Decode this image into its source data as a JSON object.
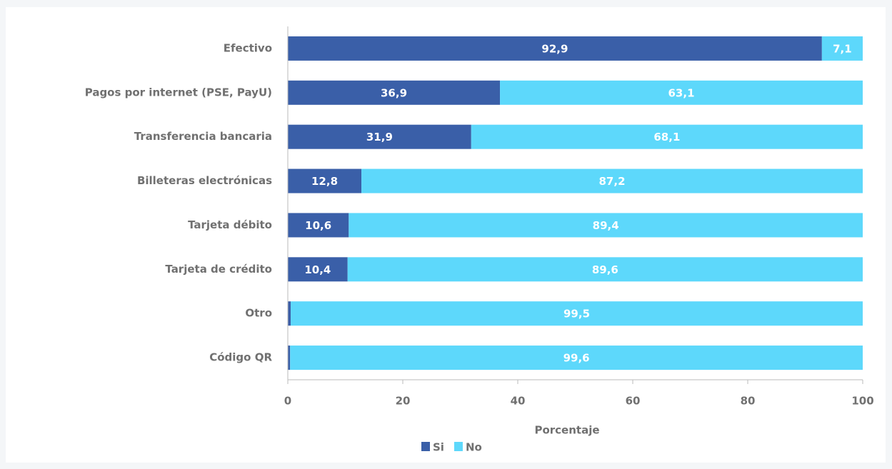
{
  "chart_data": {
    "type": "stacked_bar_horizontal",
    "categories": [
      "Efectivo",
      "Pagos por internet (PSE, PayU)",
      "Transferencia bancaria",
      "Billeteras electrónicas",
      "Tarjeta débito",
      "Tarjeta de crédito",
      "Otro",
      "Código QR"
    ],
    "series": [
      {
        "name": "Si",
        "color": "#3a5fa8",
        "values": [
          92.9,
          36.9,
          31.9,
          12.8,
          10.6,
          10.4,
          0.5,
          0.4
        ],
        "value_labels": [
          "92,9",
          "36,9",
          "31,9",
          "12,8",
          "10,6",
          "10,4",
          "0,5",
          "0,4"
        ]
      },
      {
        "name": "No",
        "color": "#5dd8fb",
        "values": [
          7.1,
          63.1,
          68.1,
          87.2,
          89.4,
          89.6,
          99.5,
          99.6
        ],
        "value_labels": [
          "7,1",
          "63,1",
          "68,1",
          "87,2",
          "89,4",
          "89,6",
          "99,5",
          "99,6"
        ]
      }
    ],
    "xlim": [
      0,
      100
    ],
    "xticks": [
      0,
      20,
      40,
      60,
      80,
      100
    ],
    "x_label": "Porcentaje",
    "legend": "bottom"
  }
}
